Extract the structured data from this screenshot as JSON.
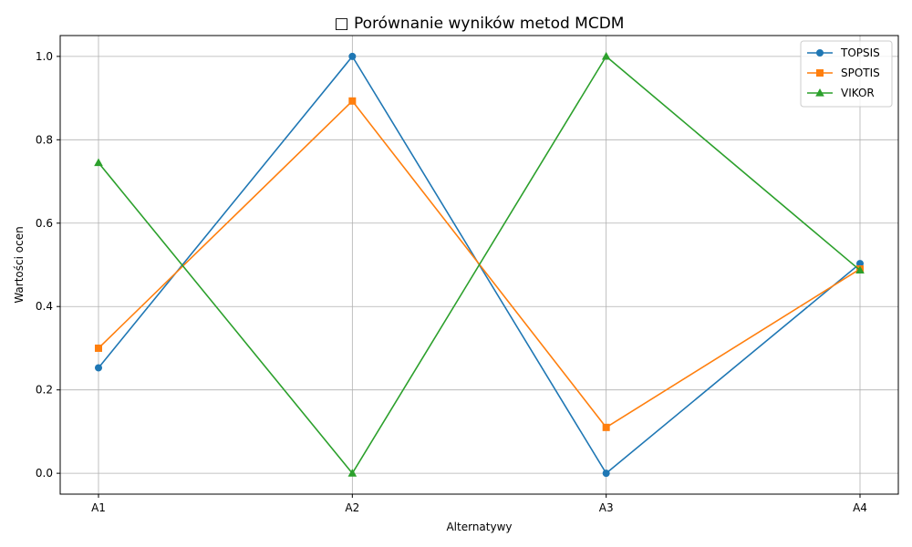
{
  "chart_data": {
    "type": "line",
    "title": "□ Porównanie wyników metod MCDM",
    "xlabel": "Alternatywy",
    "ylabel": "Wartości ocen",
    "categories": [
      "A1",
      "A2",
      "A3",
      "A4"
    ],
    "ylim": [
      -0.05,
      1.05
    ],
    "yticks": [
      "0.0",
      "0.2",
      "0.4",
      "0.6",
      "0.8",
      "1.0"
    ],
    "grid": true,
    "legend_position": "top-right",
    "series": [
      {
        "name": "TOPSIS",
        "values": [
          0.253,
          1.0,
          0.0,
          0.503
        ],
        "color": "#1f77b4",
        "marker": "circle"
      },
      {
        "name": "SPOTIS",
        "values": [
          0.3,
          0.893,
          0.11,
          0.49
        ],
        "color": "#ff7f0e",
        "marker": "square"
      },
      {
        "name": "VIKOR",
        "values": [
          0.745,
          0.0,
          1.0,
          0.487
        ],
        "color": "#2ca02c",
        "marker": "triangle"
      }
    ]
  }
}
